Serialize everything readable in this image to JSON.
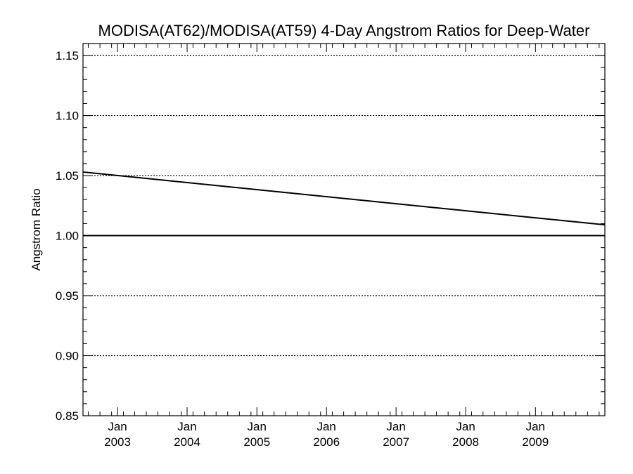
{
  "chart_data": {
    "type": "line",
    "title": "MODISA(AT62)/MODISA(AT59) 4-Day Angstrom Ratios for Deep-Water",
    "xlabel": "",
    "ylabel": "Angstrom Ratio",
    "ylim": [
      0.85,
      1.16
    ],
    "y_ticks": [
      "0.85",
      "0.90",
      "0.95",
      "1.00",
      "1.05",
      "1.10",
      "1.15"
    ],
    "y_grid": "dotted",
    "x_ticks": [
      {
        "month": "Jan",
        "year": "2003",
        "date": "2003-01-01"
      },
      {
        "month": "Jan",
        "year": "2004",
        "date": "2004-01-01"
      },
      {
        "month": "Jan",
        "year": "2005",
        "date": "2005-01-01"
      },
      {
        "month": "Jan",
        "year": "2006",
        "date": "2006-01-01"
      },
      {
        "month": "Jan",
        "year": "2007",
        "date": "2007-01-01"
      },
      {
        "month": "Jan",
        "year": "2008",
        "date": "2008-01-01"
      },
      {
        "month": "Jan",
        "year": "2009",
        "date": "2009-01-01"
      }
    ],
    "xlim": [
      "2002-07-04",
      "2009-12-31"
    ],
    "series": [
      {
        "points": [
          {
            "x": "2002-07-04",
            "y": 1.053
          },
          {
            "x": "2009-12-31",
            "y": 1.009
          }
        ],
        "color": "#000000"
      },
      {
        "points": [
          {
            "x": "2002-07-04",
            "y": 1.0
          },
          {
            "x": "2009-12-31",
            "y": 1.0
          }
        ],
        "color": "#000000"
      }
    ]
  }
}
